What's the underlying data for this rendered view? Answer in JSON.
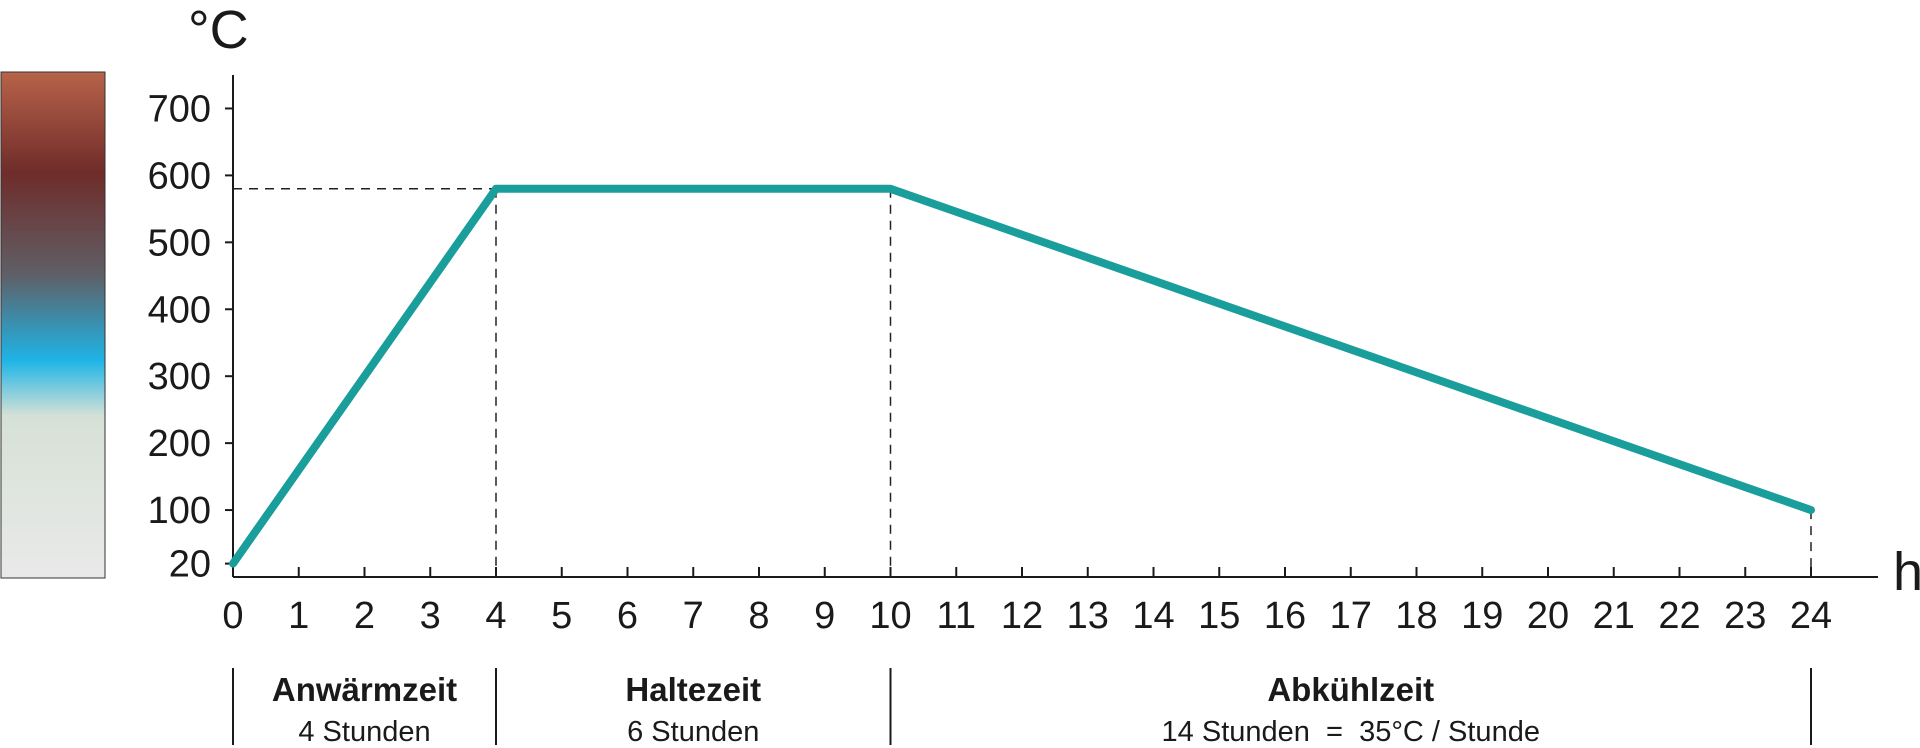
{
  "chart_data": {
    "type": "line",
    "x_unit": "h",
    "y_unit": "°C",
    "x_ticks": [
      0,
      1,
      2,
      3,
      4,
      5,
      6,
      7,
      8,
      9,
      10,
      11,
      12,
      13,
      14,
      15,
      16,
      17,
      18,
      19,
      20,
      21,
      22,
      23,
      24
    ],
    "y_ticks": [
      20,
      100,
      200,
      300,
      400,
      500,
      600,
      700
    ],
    "xlim": [
      0,
      24
    ],
    "ylim": [
      0,
      750
    ],
    "grid": false,
    "series": [
      {
        "color": "#1a9e9c",
        "x": [
          0,
          4,
          10,
          24
        ],
        "y": [
          20,
          580,
          580,
          100
        ]
      }
    ],
    "reference_lines": {
      "horizontal_y": 580,
      "vertical_x": [
        4,
        10,
        24
      ]
    },
    "color_scale": {
      "stops": [
        "#b8634a",
        "#6f2c2a",
        "#5f5f66",
        "#1eb4e6",
        "#d6e1d6",
        "#e9e9e9"
      ]
    },
    "phases": [
      {
        "title": "Anwärmzeit",
        "subtitle": "4 Stunden",
        "start": 0,
        "end": 4
      },
      {
        "title": "Haltezeit",
        "subtitle": "6 Stunden",
        "start": 4,
        "end": 10
      },
      {
        "title": "Abkühlzeit",
        "subtitle": "14 Stunden  =  35°C / Stunde",
        "start": 10,
        "end": 24
      }
    ]
  }
}
